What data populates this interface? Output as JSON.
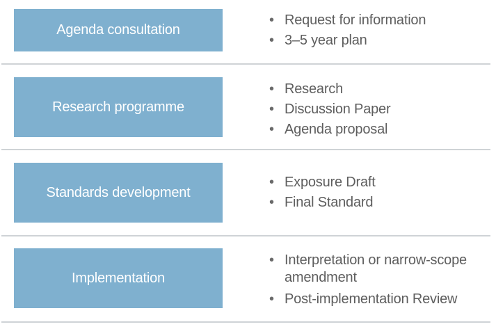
{
  "colors": {
    "stage_fill": "#7fb0cf",
    "stage_text": "#ffffff",
    "item_text": "#5e5e5e",
    "divider": "#cfd3d6"
  },
  "bullet_glyph": "•",
  "stages": [
    {
      "label": "Agenda consultation",
      "items": [
        "Request for information",
        "3–5 year plan"
      ]
    },
    {
      "label": "Research programme",
      "items": [
        "Research",
        "Discussion Paper",
        "Agenda proposal"
      ]
    },
    {
      "label": "Standards development",
      "items": [
        "Exposure Draft",
        "Final Standard"
      ]
    },
    {
      "label": "Implementation",
      "items": [
        "Interpretation or narrow-scope amendment",
        "Post-implementation Review"
      ]
    }
  ]
}
